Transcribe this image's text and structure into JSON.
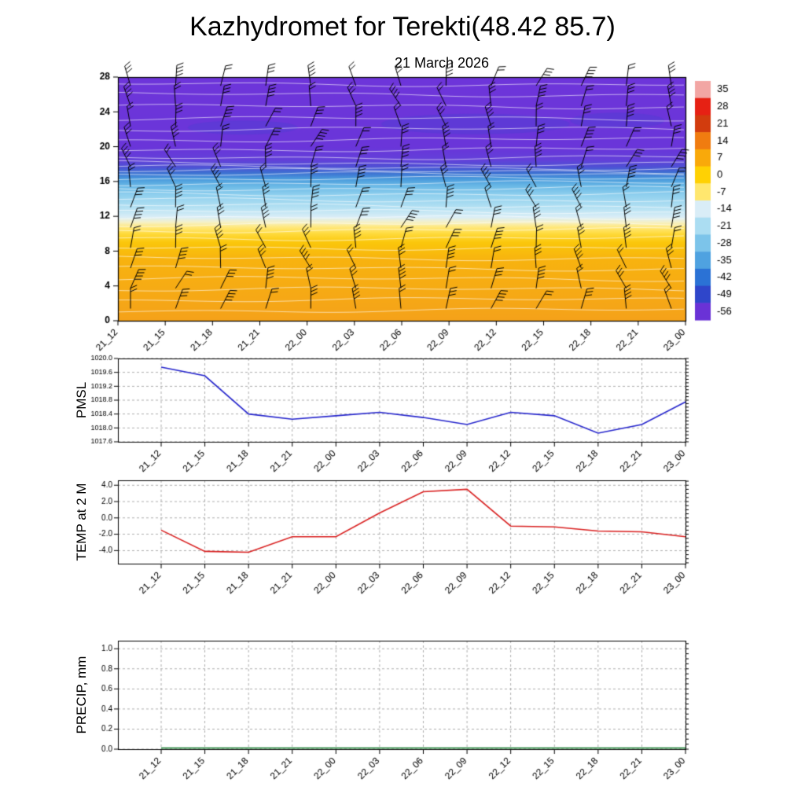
{
  "page": {
    "title": "Kazhydromet for Terekti(48.42 85.7)",
    "subtitle": "21 March 2026"
  },
  "time_labels": [
    "21_12",
    "21_15",
    "21_18",
    "21_21",
    "22_00",
    "22_03",
    "22_06",
    "22_09",
    "22_12",
    "22_15",
    "22_18",
    "22_21",
    "23_00"
  ],
  "chart_data": [
    {
      "id": "upper_air",
      "type": "heatmap",
      "description": "Time-height section: filled temperature shading with white contour lines and black wind barbs",
      "x_labels": [
        "21_12",
        "21_15",
        "21_18",
        "21_21",
        "22_00",
        "22_03",
        "22_06",
        "22_09",
        "22_12",
        "22_15",
        "22_18",
        "22_21",
        "23_00"
      ],
      "y_ticks": [
        0,
        4,
        8,
        12,
        16,
        20,
        24,
        28
      ],
      "ylim": [
        0,
        28
      ],
      "colorbar": {
        "tick_labels": [
          "35",
          "28",
          "21",
          "14",
          "7",
          "0",
          "-7",
          "-14",
          "-21",
          "-28",
          "-35",
          "-42",
          "-49",
          "-56"
        ],
        "colors_top_to_bottom": [
          "#f2a6a4",
          "#e62114",
          "#d23c0e",
          "#f07c10",
          "#f9a90a",
          "#ffd103",
          "#ffe76e",
          "#d9edf7",
          "#abddf2",
          "#7cc4ea",
          "#4fa2e0",
          "#2b72d5",
          "#2f46ca",
          "#6a32d6"
        ]
      },
      "fill_profile": [
        {
          "level": 0,
          "color": "#f5a21a"
        },
        {
          "level": 7,
          "color": "#f8b30f"
        },
        {
          "level": 9,
          "color": "#fbc70b"
        },
        {
          "level": 10,
          "color": "#ffdb3c"
        },
        {
          "level": 10.8,
          "color": "#ffe980"
        },
        {
          "level": 11.3,
          "color": "#f6f1c6"
        },
        {
          "level": 11.9,
          "color": "#daeef7"
        },
        {
          "level": 13,
          "color": "#b4e1f3"
        },
        {
          "level": 14.5,
          "color": "#8ecfee"
        },
        {
          "level": 15.5,
          "color": "#69b8e6"
        },
        {
          "level": 16.3,
          "color": "#499adc"
        },
        {
          "level": 17,
          "color": "#3d70d2"
        },
        {
          "level": 17.7,
          "color": "#4f50d5"
        },
        {
          "level": 18.5,
          "color": "#6340d9"
        },
        {
          "level": 20,
          "color": "#6a35d9"
        },
        {
          "level": 28,
          "color": "#6e35da"
        }
      ],
      "contour_levels": [
        1.2,
        2.4,
        3.6,
        4.8,
        6,
        7.2,
        8.4,
        9.5,
        10.4,
        11.1,
        11.8,
        12.5,
        13.2,
        13.9,
        14.6,
        15.2,
        15.8,
        16.3,
        16.8,
        17.2,
        17.6,
        18.1,
        18.8,
        19.7,
        20.8,
        22,
        23.2,
        24.6,
        26,
        27.2
      ],
      "wind_barbs": {
        "columns": 13,
        "rows": 12,
        "color": "#000000"
      }
    },
    {
      "id": "pmsl",
      "type": "line",
      "label": "PMSL",
      "color": "#2424cc",
      "x_labels": [
        "21_12",
        "21_15",
        "21_18",
        "21_21",
        "22_00",
        "22_03",
        "22_06",
        "22_09",
        "22_12",
        "22_15",
        "22_18",
        "22_21",
        "23_00"
      ],
      "y_ticks": [
        1020.0,
        1019.6,
        1019.2,
        1018.8,
        1018.4,
        1018.0,
        1017.6
      ],
      "ylim": [
        1017.6,
        1020.0
      ],
      "minor_step": 0.1,
      "values": [
        1019.75,
        1019.5,
        1018.4,
        1018.25,
        1018.35,
        1018.45,
        1018.3,
        1018.1,
        1018.45,
        1018.35,
        1017.85,
        1018.1,
        1018.75
      ]
    },
    {
      "id": "temp2m",
      "type": "line",
      "label": "TEMP at 2 M",
      "color": "#d92020",
      "x_labels": [
        "21_12",
        "21_15",
        "21_18",
        "21_21",
        "22_00",
        "22_03",
        "22_06",
        "22_09",
        "22_12",
        "22_15",
        "22_18",
        "22_21",
        "23_00"
      ],
      "y_ticks": [
        4.0,
        2.0,
        0.0,
        -2.0,
        -4.0
      ],
      "ylim": [
        -5.6,
        4.6
      ],
      "minor_step": 0.5,
      "values": [
        -1.5,
        -4.1,
        -4.2,
        -2.3,
        -2.3,
        0.6,
        3.2,
        3.5,
        -1.0,
        -1.1,
        -1.6,
        -1.7,
        -2.3
      ]
    },
    {
      "id": "precip",
      "type": "line",
      "label": "PRECIP, mm",
      "color": "#0e7a28",
      "x_labels": [
        "21_12",
        "21_15",
        "21_18",
        "21_21",
        "22_00",
        "22_03",
        "22_06",
        "22_09",
        "22_12",
        "22_15",
        "22_18",
        "22_21",
        "23_00"
      ],
      "y_ticks": [
        1.0,
        0.8,
        0.6,
        0.4,
        0.2,
        0.0
      ],
      "ylim": [
        0,
        1.08
      ],
      "minor_step": 0.05,
      "values": [
        0,
        0,
        0,
        0,
        0,
        0,
        0,
        0,
        0,
        0,
        0,
        0,
        0
      ]
    }
  ]
}
